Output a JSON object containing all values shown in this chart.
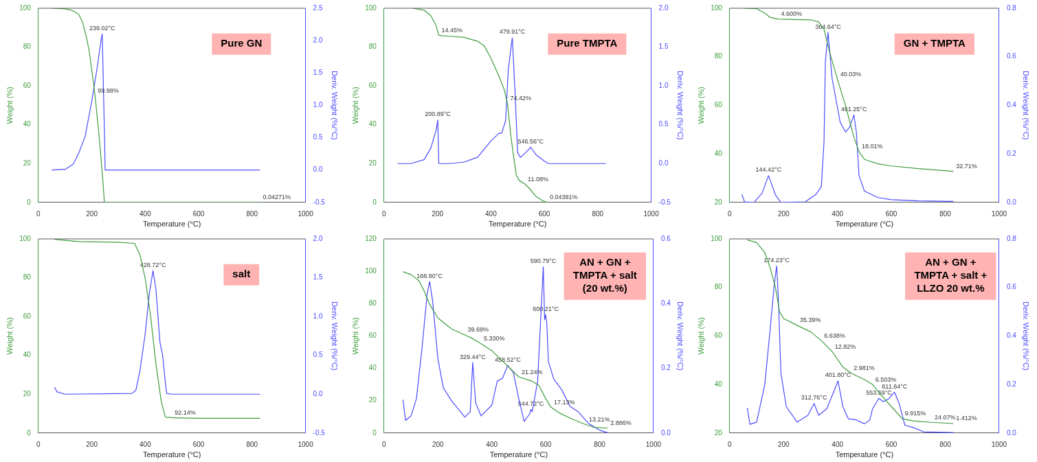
{
  "chart_data": [
    {
      "type": "line",
      "title": "Pure GN",
      "xlabel": "Temperature (°C)",
      "ylabel": "Weight (%)",
      "y2label": "Deriv. Weight (%/°C)",
      "marker": "none",
      "xlim": [
        0,
        1000
      ],
      "xticks": [
        0,
        200,
        400,
        600,
        800,
        1000
      ],
      "ylim": [
        0,
        100
      ],
      "yticks": [
        0,
        20,
        40,
        60,
        80,
        100
      ],
      "y2lim": [
        -0.5,
        2.5
      ],
      "y2ticks": [
        {
          "value": -0.5,
          "label": "-0.5"
        },
        {
          "value": 0,
          "label": "0.0"
        },
        {
          "value": 0.5,
          "label": "0.5"
        },
        {
          "value": 1,
          "label": "1.0"
        },
        {
          "value": 1.5,
          "label": "1.5"
        },
        {
          "value": 2,
          "label": "2.0"
        },
        {
          "value": 2.5,
          "label": "2.5"
        }
      ],
      "series": [
        {
          "color": "#3c9c3c",
          "x": [
            50,
            100,
            125,
            150,
            165,
            180,
            190,
            203,
            212,
            220,
            228,
            236,
            242,
            247,
            260,
            830
          ],
          "values": [
            100,
            99.7,
            99,
            97,
            93,
            85,
            78,
            65,
            55,
            44,
            33,
            20,
            10,
            0,
            0,
            0
          ]
        },
        {
          "color": "#4a4aff",
          "axis": "y2",
          "x": [
            50,
            100,
            130,
            150,
            175,
            200,
            220,
            235,
            239,
            247,
            250,
            830
          ],
          "values": [
            0,
            0.01,
            0.09,
            0.25,
            0.52,
            1.07,
            1.58,
            2.02,
            2.1,
            0.6,
            0,
            0
          ]
        }
      ],
      "annotations": [
        "239.02°C",
        {
          "text": "99.98%",
          "x": 212,
          "y": 55
        },
        {
          "text": "0.04271%",
          "x": 830,
          "y": 0
        }
      ]
    },
    {
      "type": "line",
      "title": "Pure TMPTA",
      "xlabel": "Temperature (°C)",
      "ylabel": "Weight (%)",
      "y2label": "Deriv. Weight (%/°C)",
      "marker": "none",
      "xlim": [
        0,
        1000
      ],
      "xticks": [
        0,
        200,
        400,
        600,
        800,
        1000
      ],
      "ylim": [
        0,
        100
      ],
      "yticks": [
        0,
        20,
        40,
        60,
        80,
        100
      ],
      "y2lim": [
        -0.5,
        2
      ],
      "y2ticks": [
        {
          "value": -0.5,
          "label": "-0.5"
        },
        {
          "value": 0,
          "label": "0.0"
        },
        {
          "value": 0.5,
          "label": "0.5"
        },
        {
          "value": 1,
          "label": "1.0"
        },
        {
          "value": 1.5,
          "label": "1.5"
        },
        {
          "value": 2,
          "label": "2.0"
        }
      ],
      "series": [
        {
          "color": "#3c9c3c",
          "x": [
            107,
            150,
            175,
            195,
            205,
            250,
            300,
            350,
            375,
            400,
            430,
            450,
            462,
            474,
            483,
            495,
            507,
            528,
            545,
            569,
            594,
            610
          ],
          "values": [
            100,
            99,
            96.2,
            91,
            86,
            85.5,
            85,
            83,
            80.6,
            74.2,
            65,
            58,
            51,
            35,
            25.7,
            14,
            11.2,
            9.4,
            7,
            3,
            0.8,
            0
          ]
        },
        {
          "color": "#4a4aff",
          "axis": "y2",
          "x": [
            50,
            100,
            150,
            175,
            195,
            201,
            205,
            250,
            300,
            350,
            400,
            430,
            440,
            455,
            465,
            480,
            490,
            500,
            510,
            530,
            549,
            570,
            600,
            615,
            830
          ],
          "values": [
            0,
            0,
            0.05,
            0.2,
            0.43,
            0.56,
            0,
            0,
            0.02,
            0.08,
            0.29,
            0.39,
            0.39,
            0.55,
            1.21,
            1.62,
            0.95,
            0.14,
            0.08,
            0.14,
            0.21,
            0.11,
            0.03,
            0,
            0
          ]
        }
      ],
      "annotations": [
        {
          "text": "14.45%",
          "x": 205,
          "y": 86
        },
        "200.89°C",
        "479.91°C",
        {
          "text": "74.42%",
          "x": 462,
          "y": 51
        },
        "546.56°C",
        {
          "text": "11.08%",
          "x": 528,
          "y": 9.4
        },
        {
          "text": "0.04381%",
          "x": 610,
          "y": 0
        }
      ]
    },
    {
      "type": "line",
      "title": "GN + TMPTA",
      "xlabel": "Temperature (°C)",
      "ylabel": "Weight (%)",
      "y2label": "Deriv. Weight (%/°C)",
      "marker": "none",
      "xlim": [
        0,
        1000
      ],
      "xticks": [
        0,
        200,
        400,
        600,
        800,
        1000
      ],
      "ylim": [
        20,
        100
      ],
      "yticks": [
        20,
        40,
        60,
        80,
        100
      ],
      "y2lim": [
        0,
        0.8
      ],
      "y2ticks": [
        {
          "value": 0,
          "label": "0.0"
        },
        {
          "value": 0.2,
          "label": "0.2"
        },
        {
          "value": 0.4,
          "label": "0.4"
        },
        {
          "value": 0.6,
          "label": "0.6"
        },
        {
          "value": 0.8,
          "label": "0.8"
        }
      ],
      "series": [
        {
          "color": "#3c9c3c",
          "x": [
            50,
            100,
            130,
            150,
            180,
            300,
            330,
            350,
            370,
            400,
            430,
            460,
            480,
            500,
            550,
            600,
            700,
            830
          ],
          "values": [
            100,
            99.8,
            98,
            96.2,
            95.5,
            95.2,
            94.4,
            91.3,
            82.3,
            70.6,
            59.8,
            47.2,
            40.9,
            37.7,
            35.9,
            35,
            33.9,
            32.8
          ]
        },
        {
          "color": "#4a4aff",
          "axis": "y2",
          "x": [
            45,
            55,
            90,
            120,
            144,
            170,
            190,
            280,
            320,
            340,
            350,
            355,
            365,
            380,
            410,
            430,
            445,
            461,
            470,
            480,
            500,
            550,
            600,
            700,
            830
          ],
          "values": [
            0.033,
            0.002,
            0,
            0.038,
            0.11,
            0.03,
            0,
            0.002,
            0.033,
            0.065,
            0.25,
            0.58,
            0.7,
            0.51,
            0.33,
            0.29,
            0.31,
            0.36,
            0.29,
            0.11,
            0.047,
            0.02,
            0.011,
            0.006,
            0.004
          ]
        }
      ],
      "annotations": [
        {
          "text": "4.600%",
          "x": 180,
          "y": 95.5
        },
        "144.42°C",
        "364.64°C",
        {
          "text": "40.03%",
          "x": 400,
          "y": 70.6
        },
        "461.25°C",
        {
          "text": "18.01%",
          "x": 480,
          "y": 40.9
        },
        {
          "text": "32.71%",
          "x": 830,
          "y": 32.8
        }
      ]
    },
    {
      "type": "line",
      "title": "salt",
      "xlabel": "Temperature (°C)",
      "ylabel": "Weight (%)",
      "y2label": "Deriv. Weight (%/°C)",
      "marker": "none",
      "xlim": [
        0,
        1000
      ],
      "xticks": [
        0,
        200,
        400,
        600,
        800,
        1000
      ],
      "ylim": [
        0,
        100
      ],
      "yticks": [
        0,
        20,
        40,
        60,
        80,
        100
      ],
      "y2lim": [
        -0.5,
        2
      ],
      "y2ticks": [
        {
          "value": -0.5,
          "label": "-0.5"
        },
        {
          "value": 0,
          "label": "0.0"
        },
        {
          "value": 0.5,
          "label": "0.5"
        },
        {
          "value": 1,
          "label": "1.0"
        },
        {
          "value": 1.5,
          "label": "1.5"
        },
        {
          "value": 2,
          "label": "2.0"
        }
      ],
      "series": [
        {
          "color": "#3c9c3c",
          "x": [
            60,
            150,
            300,
            360,
            380,
            400,
            420,
            440,
            460,
            475,
            500,
            600,
            830
          ],
          "values": [
            99.8,
            98.6,
            98.3,
            97.7,
            91.9,
            79.5,
            60.3,
            35.5,
            16.3,
            8.2,
            7.9,
            7.6,
            7.6
          ]
        },
        {
          "color": "#4a4aff",
          "axis": "y2",
          "x": [
            60,
            70,
            100,
            350,
            365,
            380,
            400,
            415,
            429,
            440,
            455,
            465,
            475,
            480,
            500,
            830
          ],
          "values": [
            0.09,
            0.03,
            0,
            0.01,
            0.05,
            0.3,
            0.78,
            1.29,
            1.59,
            1.35,
            0.67,
            0.5,
            0.16,
            0.01,
            0,
            0
          ]
        }
      ],
      "annotations": [
        "428.72°C",
        {
          "text": "92.14%",
          "x": 500,
          "y": 7.9
        }
      ]
    },
    {
      "type": "line",
      "title": "AN + GN +\nTMPTA + salt\n(20 wt.%)",
      "xlabel": "Temperature (°C)",
      "ylabel": "Weight (%)",
      "y2label": "Deriv. Weight (%/°C)",
      "marker": "none",
      "xlim": [
        0,
        1000
      ],
      "xticks": [
        0,
        200,
        400,
        600,
        800,
        1000
      ],
      "ylim": [
        0,
        120
      ],
      "yticks": [
        0,
        20,
        40,
        60,
        80,
        100,
        120
      ],
      "y2lim": [
        0,
        0.6
      ],
      "y2ticks": [
        {
          "value": 0,
          "label": "0.0"
        },
        {
          "value": 0.2,
          "label": "0.2"
        },
        {
          "value": 0.4,
          "label": "0.4"
        },
        {
          "value": 0.6,
          "label": "0.6"
        }
      ],
      "series": [
        {
          "color": "#3c9c3c",
          "x": [
            70,
            100,
            130,
            150,
            170,
            200,
            250,
            300,
            330,
            360,
            400,
            450,
            500,
            550,
            575,
            600,
            620,
            650,
            700,
            750,
            780,
            830
          ],
          "values": [
            99.7,
            98,
            94,
            87.3,
            79.2,
            71.1,
            64.4,
            60.6,
            58.3,
            55.2,
            50.9,
            42.8,
            34.7,
            32,
            29.4,
            21.3,
            15.9,
            12.5,
            8.5,
            5.1,
            3.5,
            3.1
          ]
        },
        {
          "color": "#4a4aff",
          "axis": "y2",
          "x": [
            70,
            80,
            100,
            120,
            140,
            160,
            169,
            180,
            200,
            220,
            250,
            300,
            320,
            329,
            340,
            360,
            400,
            420,
            440,
            459,
            480,
            500,
            520,
            540,
            545,
            550,
            570,
            580,
            591,
            596,
            600,
            604,
            610,
            630,
            660,
            690,
            720,
            760,
            800,
            830
          ],
          "values": [
            0.103,
            0.039,
            0.053,
            0.106,
            0.255,
            0.43,
            0.468,
            0.41,
            0.228,
            0.14,
            0.1,
            0.049,
            0.066,
            0.218,
            0.093,
            0.053,
            0.086,
            0.16,
            0.17,
            0.209,
            0.187,
            0.106,
            0.036,
            0.059,
            0.073,
            0.066,
            0.16,
            0.33,
            0.514,
            0.35,
            0.366,
            0.34,
            0.221,
            0.167,
            0.133,
            0.083,
            0.066,
            0.029,
            0.009,
            0.001
          ]
        }
      ],
      "annotations": [
        "168.90°C",
        {
          "text": "39.69%",
          "x": 300,
          "y": 60.6
        },
        {
          "text": "5.330%",
          "x": 360,
          "y": 55.2
        },
        "329.44°C",
        "458.52°C",
        {
          "text": "21.24%",
          "x": 500,
          "y": 34.7
        },
        "544.72°C",
        "590.79°C",
        "600.21°C",
        {
          "text": "17.13%",
          "x": 620,
          "y": 15.9
        },
        {
          "text": "13.21%",
          "x": 750,
          "y": 5.1
        },
        {
          "text": "2.886%",
          "x": 830,
          "y": 3.1
        }
      ]
    },
    {
      "type": "line",
      "title": "AN + GN +\nTMPTA + salt +\nLLZO 20 wt.%",
      "xlabel": "Temperature (°C)",
      "ylabel": "Weight (%)",
      "y2label": "Deriv. Weight (%/°C)",
      "marker": "none",
      "xlim": [
        0,
        1000
      ],
      "xticks": [
        0,
        200,
        400,
        600,
        800,
        1000
      ],
      "ylim": [
        20,
        100
      ],
      "yticks": [
        20,
        40,
        60,
        80,
        100
      ],
      "y2lim": [
        0,
        0.8
      ],
      "y2ticks": [
        {
          "value": 0,
          "label": "0.0"
        },
        {
          "value": 0.2,
          "label": "0.2"
        },
        {
          "value": 0.4,
          "label": "0.4"
        },
        {
          "value": 0.6,
          "label": "0.6"
        },
        {
          "value": 0.8,
          "label": "0.8"
        }
      ],
      "series": [
        {
          "color": "#3c9c3c",
          "x": [
            65,
            100,
            130,
            150,
            170,
            185,
            200,
            250,
            300,
            340,
            380,
            420,
            450,
            500,
            530,
            560,
            600,
            640,
            680,
            750,
            830
          ],
          "values": [
            99.6,
            98.5,
            94.4,
            88,
            79.9,
            69.9,
            67.2,
            64.4,
            61.7,
            58.1,
            53.6,
            47.2,
            44.7,
            42,
            40,
            35.9,
            30.9,
            25.9,
            25,
            24.4,
            23.9
          ]
        },
        {
          "color": "#4a4aff",
          "axis": "y2",
          "x": [
            65,
            75,
            100,
            130,
            150,
            165,
            174,
            180,
            190,
            210,
            250,
            290,
            313,
            330,
            360,
            390,
            402,
            420,
            440,
            470,
            500,
            520,
            530,
            554,
            570,
            590,
            612,
            630,
            650,
            680,
            720,
            830
          ],
          "values": [
            0.104,
            0.036,
            0.045,
            0.2,
            0.426,
            0.608,
            0.689,
            0.571,
            0.245,
            0.109,
            0.045,
            0.073,
            0.122,
            0.073,
            0.1,
            0.181,
            0.215,
            0.109,
            0.059,
            0.054,
            0.038,
            0.054,
            0.1,
            0.143,
            0.129,
            0.141,
            0.168,
            0.118,
            0.032,
            0.023,
            0.005,
            0.002
          ]
        }
      ],
      "annotations": [
        "174.23°C",
        {
          "text": "35.39%",
          "x": 250,
          "y": 64.4
        },
        {
          "text": "6.638%",
          "x": 340,
          "y": 58.1
        },
        {
          "text": "12.82%",
          "x": 380,
          "y": 53.6
        },
        "312.76°C",
        "401.80°C",
        {
          "text": "2.981%",
          "x": 450,
          "y": 44.7
        },
        {
          "text": "6.503%",
          "x": 530,
          "y": 40
        },
        "553.59°C",
        "611.64°C",
        {
          "text": "9.915%",
          "x": 640,
          "y": 25.9
        },
        {
          "text": "24.07%",
          "x": 750,
          "y": 24.4
        },
        {
          "text": "1.412%",
          "x": 830,
          "y": 23.9
        }
      ]
    }
  ]
}
